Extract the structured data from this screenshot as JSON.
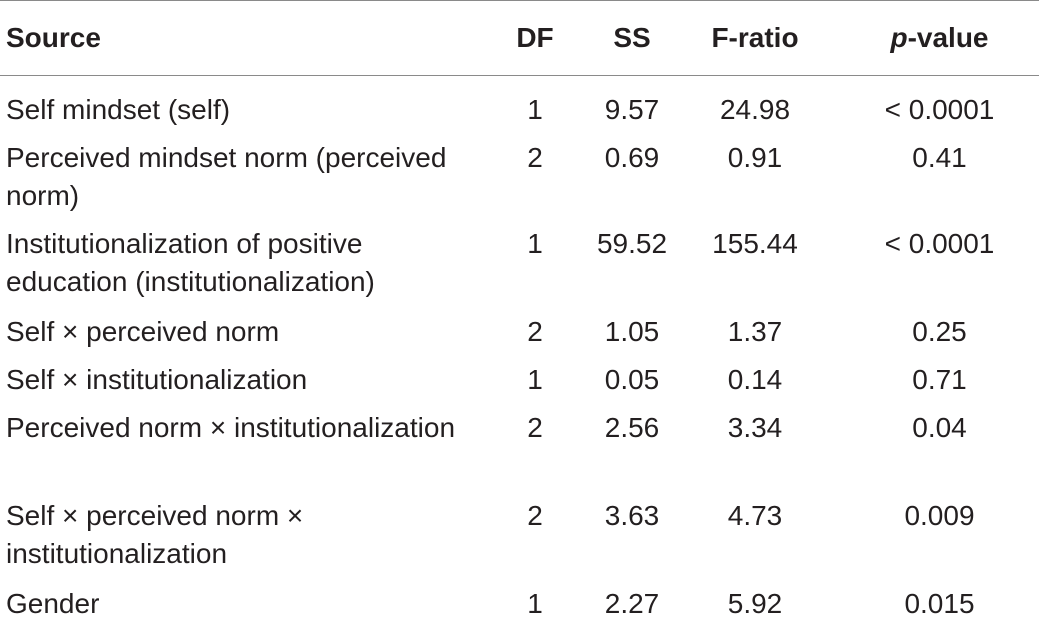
{
  "header": {
    "source": "Source",
    "df": "DF",
    "ss": "SS",
    "f_ratio": "F-ratio",
    "p_value_italic": "p",
    "p_value_rest": "-value"
  },
  "rows": [
    {
      "source": "Self mindset (self)",
      "df": "1",
      "ss": "9.57",
      "f": "24.98",
      "p": "< 0.0001"
    },
    {
      "source": "Perceived mindset norm (perceived norm)",
      "df": "2",
      "ss": "0.69",
      "f": "0.91",
      "p": "0.41"
    },
    {
      "source": "Institutionalization of positive education (institutionalization)",
      "df": "1",
      "ss": "59.52",
      "f": "155.44",
      "p": "< 0.0001"
    },
    {
      "source": "Self × perceived norm",
      "df": "2",
      "ss": "1.05",
      "f": "1.37",
      "p": "0.25"
    },
    {
      "source": "Self × institutionalization",
      "df": "1",
      "ss": "0.05",
      "f": "0.14",
      "p": "0.71"
    },
    {
      "source": "Perceived norm × institutionalization",
      "df": "2",
      "ss": "2.56",
      "f": "3.34",
      "p": "0.04"
    },
    {
      "source": "Self × perceived norm × institutionalization",
      "df": "2",
      "ss": "3.63",
      "f": "4.73",
      "p": "0.009"
    },
    {
      "source": "Gender",
      "df": "1",
      "ss": "2.27",
      "f": "5.92",
      "p": "0.015"
    }
  ]
}
